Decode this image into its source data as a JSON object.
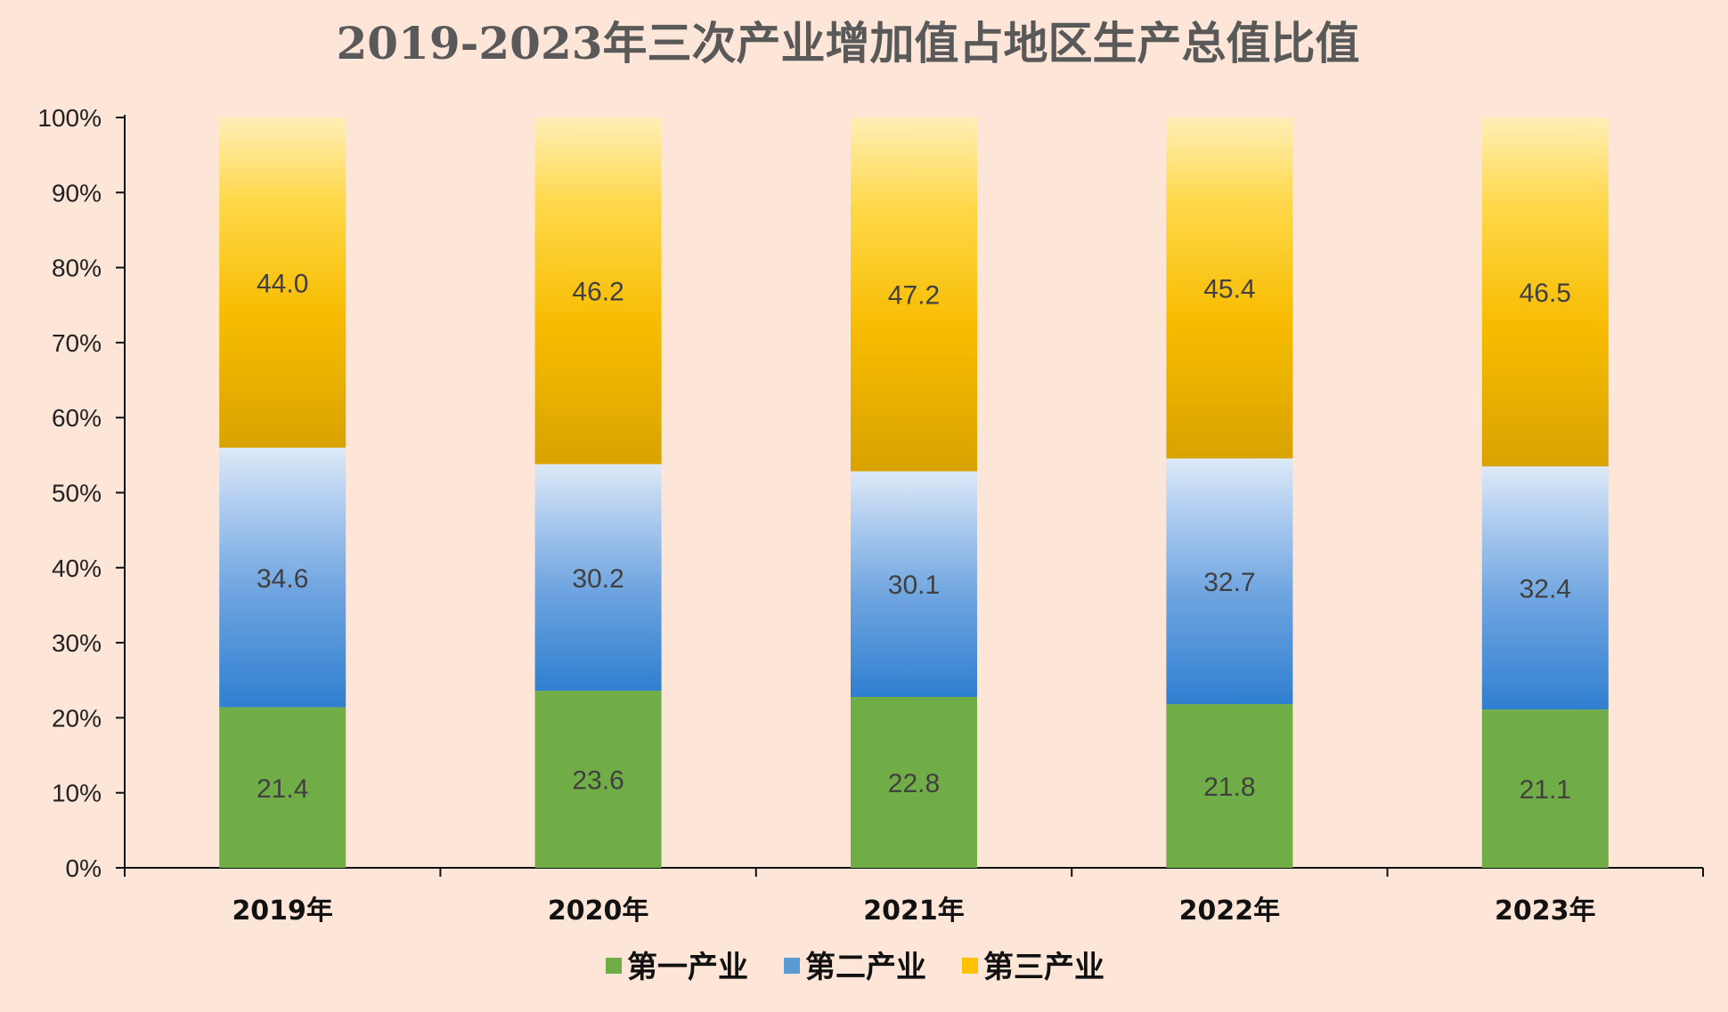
{
  "chart_data": {
    "type": "bar",
    "stacked": true,
    "percent": true,
    "title": "2019-2023年三次产业增加值占地区生产总值比值",
    "categories": [
      "2019年",
      "2020年",
      "2021年",
      "2022年",
      "2023年"
    ],
    "series": [
      {
        "name": "第一产业",
        "color": "#70ad47",
        "values": [
          21.4,
          23.6,
          22.8,
          21.8,
          21.1
        ]
      },
      {
        "name": "第二产业",
        "color": "#5b9bd5",
        "values": [
          34.6,
          30.2,
          30.1,
          32.7,
          32.4
        ]
      },
      {
        "name": "第三产业",
        "color": "#ffc000",
        "values": [
          44.0,
          46.2,
          47.2,
          45.4,
          46.5
        ]
      }
    ],
    "yticks": [
      "0%",
      "10%",
      "20%",
      "30%",
      "40%",
      "50%",
      "60%",
      "70%",
      "80%",
      "90%",
      "100%"
    ],
    "ylim": [
      0,
      100
    ],
    "grid": false,
    "legend_position": "bottom"
  }
}
